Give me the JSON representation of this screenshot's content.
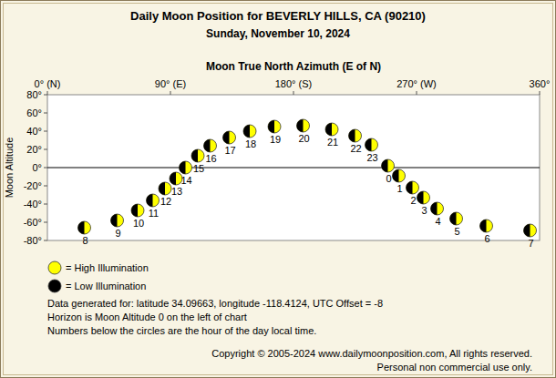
{
  "chart_data": {
    "type": "scatter",
    "title": "Daily Moon Position for BEVERLY HILLS, CA (90210)",
    "subtitle": "Sunday, November 10, 2024",
    "x_label": "Moon True North Azimuth (E of N)",
    "y_label": "Moon Altitude",
    "xlim": [
      0,
      360
    ],
    "xticks": [
      {
        "value": 0,
        "label": "0° (N)"
      },
      {
        "value": 90,
        "label": "90° (E)"
      },
      {
        "value": 180,
        "label": "180° (S)"
      },
      {
        "value": 270,
        "label": "270° (W)"
      },
      {
        "value": 360,
        "label": "360°"
      }
    ],
    "ylim": [
      -80,
      80
    ],
    "yticks": [
      {
        "value": 80,
        "label": "80°"
      },
      {
        "value": 60,
        "label": "60°"
      },
      {
        "value": 40,
        "label": "40°"
      },
      {
        "value": 20,
        "label": "20°"
      },
      {
        "value": 0,
        "label": "0°"
      },
      {
        "value": -20,
        "label": "-20°"
      },
      {
        "value": -40,
        "label": "-40°"
      },
      {
        "value": -60,
        "label": "-60°"
      },
      {
        "value": -80,
        "label": "-80°"
      }
    ],
    "horizon": 0,
    "x": [
      27,
      51,
      66,
      77,
      86,
      94,
      101,
      110,
      119,
      133,
      148,
      166,
      187,
      208,
      225,
      237,
      249,
      257,
      267,
      275,
      285,
      299,
      321,
      353
    ],
    "values": [
      -66,
      -58,
      -47,
      -36,
      -23,
      -12,
      0,
      13,
      24,
      33,
      40,
      45,
      46,
      42,
      35,
      25,
      2,
      -9,
      -22,
      -33,
      -45,
      -56,
      -64,
      -69
    ],
    "hours": [
      8,
      9,
      10,
      11,
      12,
      13,
      14,
      15,
      16,
      17,
      18,
      19,
      20,
      21,
      22,
      23,
      0,
      1,
      2,
      3,
      4,
      5,
      6,
      7
    ],
    "key": [
      {
        "label": "= High Illumination",
        "color": "#ffff00"
      },
      {
        "label": "= Low Illumination",
        "color": "#000000"
      }
    ],
    "notes": [
      "Data generated for: latitude 34.09663, longitude -118.4124, UTC Offset = -8",
      "Horizon is Moon Altitude 0 on the left of chart",
      "Numbers below the circles are the hour of the day local time."
    ],
    "copyright": [
      "Copyright © 2005-2024 www.dailymoonposition.com, All rights reserved.",
      "Personal non commercial use only."
    ]
  }
}
